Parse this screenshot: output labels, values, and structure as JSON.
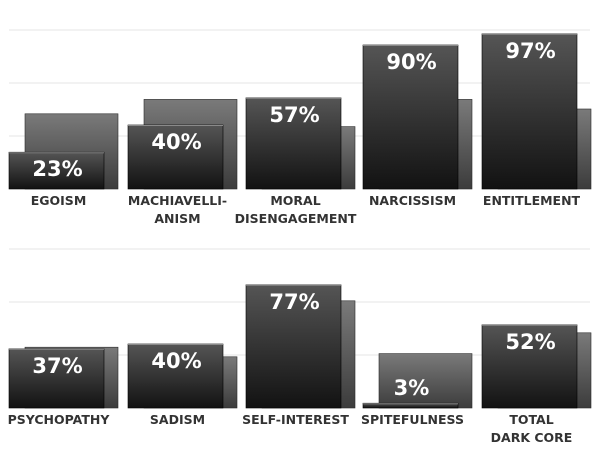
{
  "chart_data": {
    "type": "bar",
    "value_suffix": "%",
    "ylim": [
      0,
      100
    ],
    "grid": true,
    "panels": [
      {
        "categories": [
          {
            "label_lines": [
              "EGOISM"
            ],
            "value": 23,
            "back_value": 47
          },
          {
            "label_lines": [
              "MACHIAVELLI-",
              "ANISM"
            ],
            "value": 40,
            "back_value": 56
          },
          {
            "label_lines": [
              "MORAL",
              "DISENGAGEMENT"
            ],
            "value": 57,
            "back_value": 39
          },
          {
            "label_lines": [
              "NARCISSISM"
            ],
            "value": 90,
            "back_value": 56
          },
          {
            "label_lines": [
              "ENTITLEMENT"
            ],
            "value": 97,
            "back_value": 50
          }
        ]
      },
      {
        "categories": [
          {
            "label_lines": [
              "PSYCHOPATHY"
            ],
            "value": 37,
            "back_value": 38
          },
          {
            "label_lines": [
              "SADISM"
            ],
            "value": 40,
            "back_value": 32
          },
          {
            "label_lines": [
              "SELF-INTEREST"
            ],
            "value": 77,
            "back_value": 67
          },
          {
            "label_lines": [
              "SPITEFULNESS"
            ],
            "value": 3,
            "back_value": 34
          },
          {
            "label_lines": [
              "TOTAL",
              "DARK CORE"
            ],
            "value": 52,
            "back_value": 47
          }
        ]
      }
    ],
    "colors": {
      "front_top": "#555555",
      "front_bottom": "#121212",
      "back_top": "#7a7a7a",
      "back_bottom": "#3c3c3c",
      "label": "#333333",
      "value_text": "#ffffff"
    }
  }
}
